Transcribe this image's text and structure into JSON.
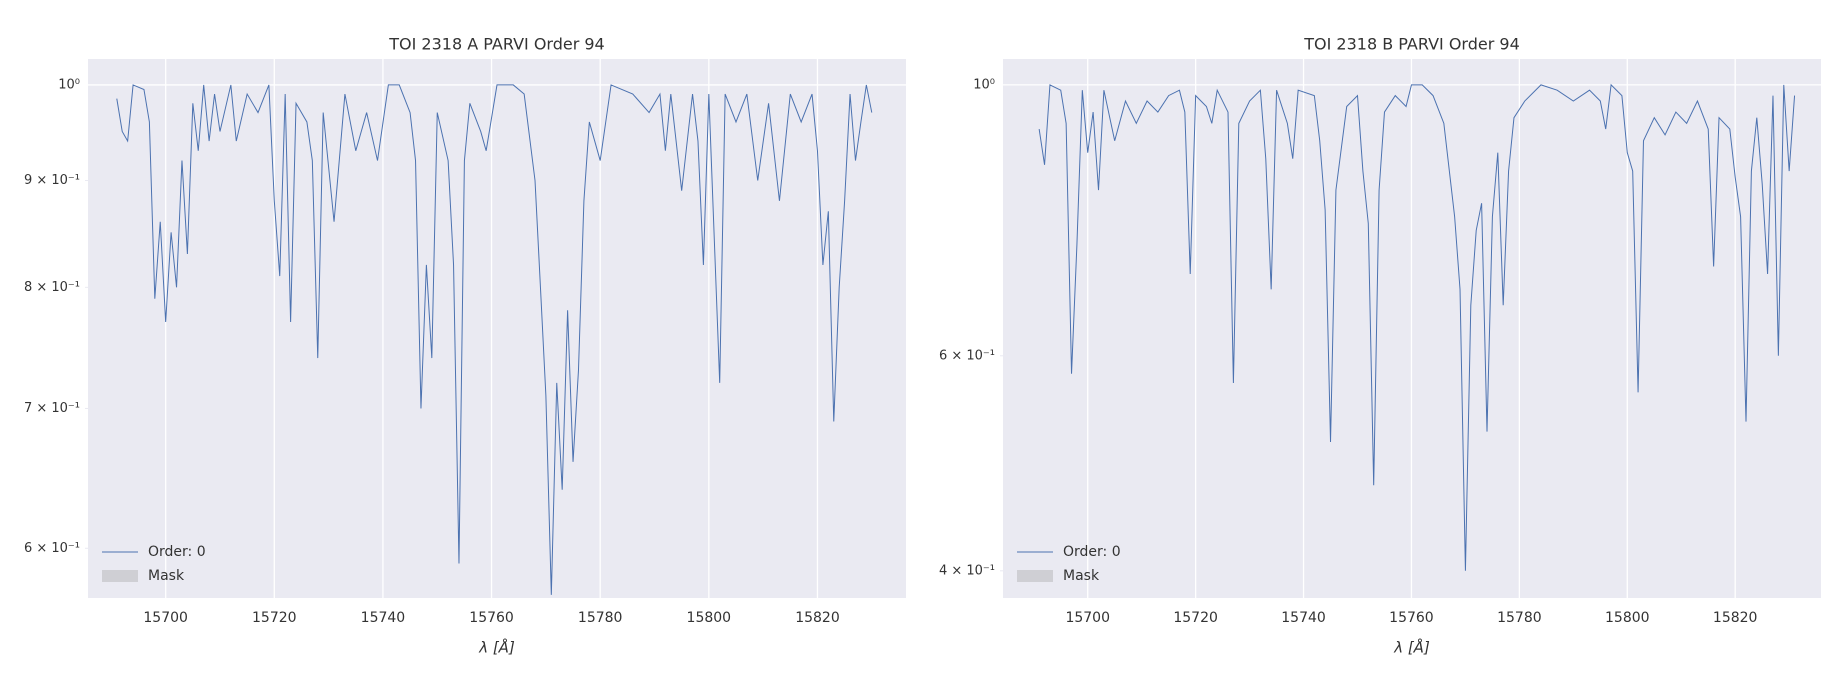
{
  "chart_data": [
    {
      "type": "line",
      "title": "TOI 2318 A PARVI Order 94",
      "xlabel": "λ [Å]",
      "yscale": "log",
      "grid": true,
      "legend": "lower left",
      "xlim": [
        15685.7,
        15836.3
      ],
      "xticks": [
        15700,
        15720,
        15740,
        15760,
        15780,
        15800,
        15820
      ],
      "ylim": [
        0.568,
        1.029
      ],
      "yticks": [
        {
          "value": 0.6,
          "label": "6 × 10⁻¹"
        },
        {
          "value": 0.7,
          "label": "7 × 10⁻¹"
        },
        {
          "value": 0.8,
          "label": "8 × 10⁻¹"
        },
        {
          "value": 0.9,
          "label": "9 × 10⁻¹"
        },
        {
          "value": 1,
          "label": "10⁰"
        }
      ],
      "patches": [
        {
          "name": "Mask",
          "color": "#cfcfd4"
        }
      ],
      "x": [
        15691,
        15692,
        15693,
        15694,
        15696,
        15697,
        15698,
        15699,
        15700,
        15701,
        15702,
        15703,
        15704,
        15705,
        15706,
        15707,
        15708,
        15709,
        15710,
        15712,
        15713,
        15715,
        15717,
        15719,
        15720,
        15721,
        15722,
        15723,
        15724,
        15726,
        15727,
        15728,
        15729,
        15731,
        15733,
        15735,
        15737,
        15739,
        15741,
        15743,
        15745,
        15746,
        15747,
        15748,
        15749,
        15750,
        15752,
        15753,
        15754,
        15755,
        15756,
        15758,
        15759,
        15761,
        15764,
        15766,
        15768,
        15769,
        15770,
        15771,
        15772,
        15773,
        15774,
        15775,
        15776,
        15777,
        15778,
        15780,
        15782,
        15786,
        15789,
        15791,
        15792,
        15793,
        15795,
        15797,
        15798,
        15799,
        15800,
        15802,
        15803,
        15805,
        15807,
        15809,
        15811,
        15813,
        15815,
        15817,
        15819,
        15820,
        15821,
        15822,
        15823,
        15824,
        15825,
        15826,
        15827,
        15828,
        15829,
        15830
      ],
      "series": [
        {
          "name": "Order: 0",
          "color": "#4c72b0",
          "values": [
            0.985,
            0.95,
            0.94,
            1.0,
            0.995,
            0.96,
            0.79,
            0.86,
            0.77,
            0.85,
            0.8,
            0.92,
            0.83,
            0.98,
            0.93,
            1.0,
            0.94,
            0.99,
            0.95,
            1.0,
            0.94,
            0.99,
            0.97,
            1.0,
            0.88,
            0.81,
            0.99,
            0.77,
            0.98,
            0.96,
            0.92,
            0.74,
            0.97,
            0.86,
            0.99,
            0.93,
            0.97,
            0.92,
            1.0,
            1.0,
            0.97,
            0.92,
            0.7,
            0.82,
            0.74,
            0.97,
            0.92,
            0.82,
            0.59,
            0.92,
            0.98,
            0.95,
            0.93,
            1.0,
            1.0,
            0.99,
            0.9,
            0.8,
            0.71,
            0.57,
            0.72,
            0.64,
            0.78,
            0.66,
            0.73,
            0.88,
            0.96,
            0.92,
            1.0,
            0.99,
            0.97,
            0.99,
            0.93,
            0.99,
            0.89,
            0.99,
            0.94,
            0.82,
            0.99,
            0.72,
            0.99,
            0.96,
            0.99,
            0.9,
            0.98,
            0.88,
            0.99,
            0.96,
            0.99,
            0.93,
            0.82,
            0.87,
            0.69,
            0.8,
            0.88,
            0.99,
            0.92,
            0.96,
            1.0,
            0.97
          ]
        }
      ]
    },
    {
      "type": "line",
      "title": "TOI 2318 B PARVI Order 94",
      "xlabel": "λ [Å]",
      "yscale": "log",
      "grid": true,
      "legend": "lower left",
      "xlim": [
        15684.3,
        15835.9
      ],
      "xticks": [
        15700,
        15720,
        15740,
        15760,
        15780,
        15800,
        15820
      ],
      "ylim": [
        0.38,
        1.05
      ],
      "yticks": [
        {
          "value": 0.4,
          "label": "4 × 10⁻¹"
        },
        {
          "value": 0.6,
          "label": "6 × 10⁻¹"
        },
        {
          "value": 1,
          "label": "10⁰"
        }
      ],
      "patches": [
        {
          "name": "Mask",
          "color": "#cfcfd4"
        }
      ],
      "x": [
        15691,
        15692,
        15693,
        15695,
        15696,
        15697,
        15698,
        15699,
        15700,
        15701,
        15702,
        15703,
        15705,
        15707,
        15709,
        15711,
        15713,
        15715,
        15717,
        15718,
        15719,
        15720,
        15722,
        15723,
        15724,
        15726,
        15727,
        15728,
        15730,
        15732,
        15733,
        15734,
        15735,
        15737,
        15738,
        15739,
        15742,
        15743,
        15744,
        15745,
        15746,
        15748,
        15750,
        15751,
        15752,
        15753,
        15754,
        15755,
        15757,
        15759,
        15760,
        15762,
        15764,
        15766,
        15768,
        15769,
        15770,
        15771,
        15772,
        15773,
        15774,
        15775,
        15776,
        15777,
        15778,
        15779,
        15781,
        15784,
        15787,
        15790,
        15793,
        15795,
        15796,
        15797,
        15799,
        15800,
        15801,
        15802,
        15803,
        15805,
        15807,
        15809,
        15811,
        15813,
        15815,
        15816,
        15817,
        15819,
        15820,
        15821,
        15822,
        15823,
        15824,
        15825,
        15826,
        15827,
        15828,
        15829,
        15830,
        15831
      ],
      "series": [
        {
          "name": "Order: 0",
          "color": "#4c72b0",
          "values": [
            0.92,
            0.86,
            1.0,
            0.99,
            0.93,
            0.58,
            0.74,
            0.99,
            0.88,
            0.95,
            0.82,
            0.99,
            0.9,
            0.97,
            0.93,
            0.97,
            0.95,
            0.98,
            0.99,
            0.95,
            0.7,
            0.98,
            0.96,
            0.93,
            0.99,
            0.95,
            0.57,
            0.93,
            0.97,
            0.99,
            0.87,
            0.68,
            0.99,
            0.93,
            0.87,
            0.99,
            0.98,
            0.9,
            0.79,
            0.51,
            0.82,
            0.96,
            0.98,
            0.85,
            0.77,
            0.47,
            0.82,
            0.95,
            0.98,
            0.96,
            1.0,
            1.0,
            0.98,
            0.93,
            0.78,
            0.68,
            0.4,
            0.66,
            0.76,
            0.8,
            0.52,
            0.78,
            0.88,
            0.66,
            0.85,
            0.94,
            0.97,
            1.0,
            0.99,
            0.97,
            0.99,
            0.97,
            0.92,
            1.0,
            0.98,
            0.88,
            0.85,
            0.56,
            0.9,
            0.94,
            0.91,
            0.95,
            0.93,
            0.97,
            0.92,
            0.71,
            0.94,
            0.92,
            0.84,
            0.78,
            0.53,
            0.85,
            0.94,
            0.83,
            0.7,
            0.98,
            0.6,
            1.0,
            0.85,
            0.98
          ]
        }
      ]
    }
  ]
}
